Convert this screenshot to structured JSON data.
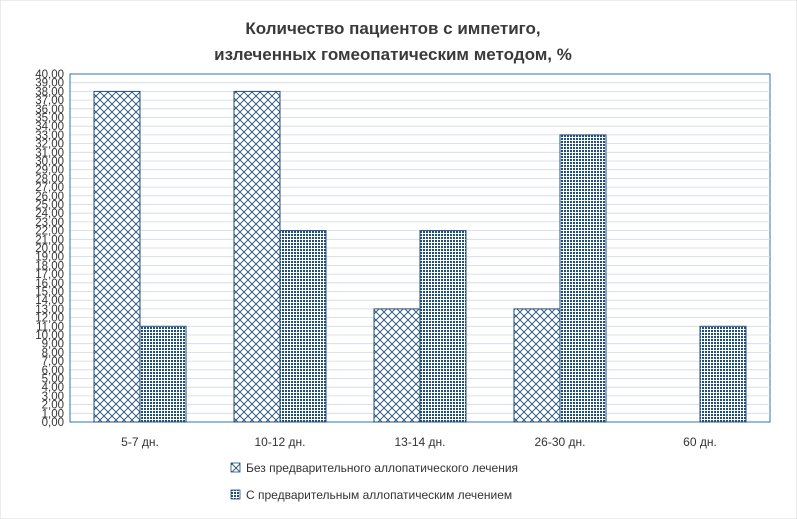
{
  "chart_data": {
    "type": "bar",
    "title_lines": [
      "Количество пациентов с импетиго,",
      "излеченных гомеопатическим методом, %"
    ],
    "categories": [
      "5-7 дн.",
      "10-12 дн.",
      "13-14 дн.",
      "26-30 дн.",
      "60 дн."
    ],
    "series": [
      {
        "name": "Без предварительного аллопатического лечения",
        "values": [
          38,
          38,
          13,
          13,
          null
        ],
        "pattern": "diagonal-crosshatch"
      },
      {
        "name": "С предварительным аллопатическим лечением",
        "values": [
          11,
          22,
          22,
          33,
          11
        ],
        "pattern": "dense-grid"
      }
    ],
    "ylim": [
      0,
      40
    ],
    "ytick_step": 1,
    "ytick_format": "2 decimals, comma separator",
    "grid": true,
    "legend_position": "bottom",
    "colors": {
      "bar_outline": "#1f4e79",
      "pattern": "#1f4e79",
      "grid": "#d0d8e4",
      "axis": "#2e75b6",
      "title": "#3a3a3a"
    }
  }
}
